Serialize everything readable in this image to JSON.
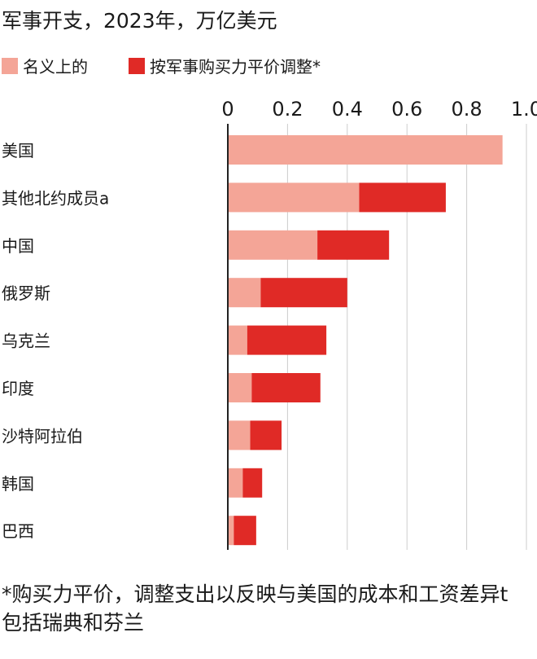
{
  "title": "军事开支，2023年，万亿美元",
  "colors": {
    "nominal": "#f4a597",
    "ppp": "#e02a26",
    "axis": "#222222",
    "grid": "#cccccc"
  },
  "chart_data": {
    "type": "bar",
    "orientation": "horizontal",
    "stacked": true,
    "title": "军事开支，2023年，万亿美元",
    "xlim": [
      0,
      1.0
    ],
    "xticks": [
      "0",
      "0.2",
      "0.4",
      "0.6",
      "0.8",
      "1.0"
    ],
    "xtick_values": [
      0,
      0.2,
      0.4,
      0.6,
      0.8,
      1.0
    ],
    "grid": "vertical",
    "legend_position": "top",
    "categories": [
      "美国",
      "其他北约成员a",
      "中国",
      "俄罗斯",
      "乌克兰",
      "印度",
      "沙特阿拉伯",
      "韩国",
      "巴西"
    ],
    "series": [
      {
        "name": "名义上的",
        "values": [
          0.92,
          0.44,
          0.3,
          0.11,
          0.065,
          0.08,
          0.075,
          0.05,
          0.02
        ]
      },
      {
        "name": "按军事购买力平价调整*",
        "values": [
          0.0,
          0.29,
          0.24,
          0.29,
          0.265,
          0.23,
          0.105,
          0.065,
          0.075
        ]
      }
    ]
  },
  "footnote": "*购买力平价，调整支出以反映与美国的成本和工资差异t包括瑞典和芬兰"
}
